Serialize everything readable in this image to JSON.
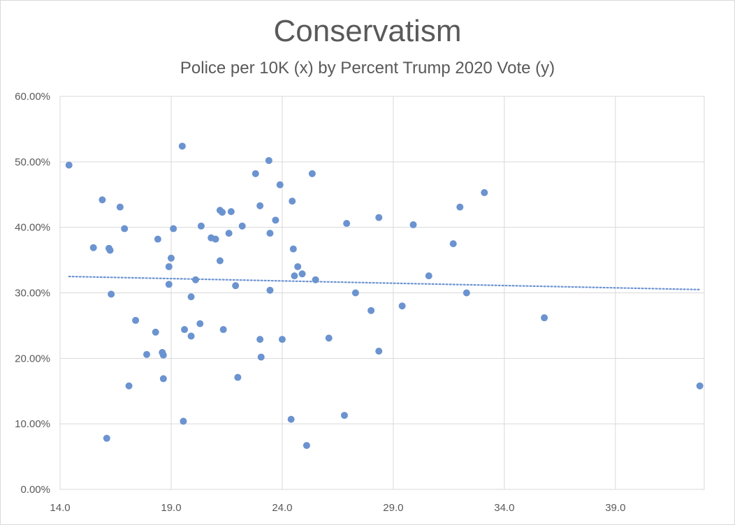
{
  "chart_data": {
    "type": "scatter",
    "title": "Conservatism",
    "subtitle": "Police per 10K (x) by Percent Trump 2020 Vote (y)",
    "xlim": [
      14.0,
      43.0
    ],
    "ylim": [
      0,
      60
    ],
    "x_ticks": [
      "14.0",
      "19.0",
      "24.0",
      "29.0",
      "34.0",
      "39.0"
    ],
    "x_tick_values": [
      14,
      19,
      24,
      29,
      34,
      39
    ],
    "y_ticks": [
      "0.00%",
      "10.00%",
      "20.00%",
      "30.00%",
      "40.00%",
      "50.00%",
      "60.00%"
    ],
    "y_tick_values": [
      0,
      10,
      20,
      30,
      40,
      50,
      60
    ],
    "grid": true,
    "trendline": {
      "type": "linear",
      "style": "dotted",
      "x": [
        14.4,
        42.8
      ],
      "y": [
        32.5,
        30.5
      ]
    },
    "series": [
      {
        "color": "#6b93d0",
        "points": [
          [
            14.4,
            49.5
          ],
          [
            15.5,
            36.9
          ],
          [
            15.9,
            44.2
          ],
          [
            16.1,
            7.8
          ],
          [
            16.2,
            36.8
          ],
          [
            16.25,
            36.5
          ],
          [
            16.3,
            29.8
          ],
          [
            16.7,
            43.1
          ],
          [
            16.9,
            39.8
          ],
          [
            17.1,
            15.8
          ],
          [
            17.4,
            25.8
          ],
          [
            17.9,
            20.6
          ],
          [
            18.3,
            24.0
          ],
          [
            18.4,
            38.2
          ],
          [
            18.6,
            20.9
          ],
          [
            18.65,
            20.5
          ],
          [
            18.65,
            16.9
          ],
          [
            18.9,
            34.0
          ],
          [
            18.9,
            31.3
          ],
          [
            19.0,
            35.3
          ],
          [
            19.1,
            39.8
          ],
          [
            19.5,
            52.4
          ],
          [
            19.55,
            10.4
          ],
          [
            19.6,
            24.4
          ],
          [
            19.9,
            29.4
          ],
          [
            19.9,
            23.4
          ],
          [
            20.1,
            32.0
          ],
          [
            20.3,
            25.3
          ],
          [
            20.35,
            40.2
          ],
          [
            20.8,
            38.4
          ],
          [
            21.0,
            38.2
          ],
          [
            21.2,
            42.6
          ],
          [
            21.2,
            34.9
          ],
          [
            21.3,
            42.3
          ],
          [
            21.35,
            24.4
          ],
          [
            21.6,
            39.1
          ],
          [
            21.7,
            42.4
          ],
          [
            21.9,
            31.1
          ],
          [
            22.0,
            17.1
          ],
          [
            22.2,
            40.2
          ],
          [
            22.8,
            48.2
          ],
          [
            23.0,
            43.3
          ],
          [
            23.0,
            22.9
          ],
          [
            23.05,
            20.2
          ],
          [
            23.4,
            50.2
          ],
          [
            23.45,
            39.1
          ],
          [
            23.45,
            30.4
          ],
          [
            23.7,
            41.1
          ],
          [
            23.9,
            46.5
          ],
          [
            24.0,
            22.9
          ],
          [
            24.4,
            10.7
          ],
          [
            24.45,
            44.0
          ],
          [
            24.5,
            36.7
          ],
          [
            24.55,
            32.6
          ],
          [
            24.7,
            34.0
          ],
          [
            24.9,
            32.9
          ],
          [
            25.1,
            6.7
          ],
          [
            25.35,
            48.2
          ],
          [
            25.5,
            32.0
          ],
          [
            26.1,
            23.1
          ],
          [
            26.8,
            11.3
          ],
          [
            26.9,
            40.6
          ],
          [
            27.3,
            30.0
          ],
          [
            28.0,
            27.3
          ],
          [
            28.35,
            41.5
          ],
          [
            28.35,
            21.1
          ],
          [
            29.4,
            28.0
          ],
          [
            29.9,
            40.4
          ],
          [
            30.6,
            32.6
          ],
          [
            31.7,
            37.5
          ],
          [
            32.0,
            43.1
          ],
          [
            32.3,
            30.0
          ],
          [
            33.1,
            45.3
          ],
          [
            35.8,
            26.2
          ],
          [
            42.8,
            15.8
          ]
        ]
      }
    ]
  }
}
